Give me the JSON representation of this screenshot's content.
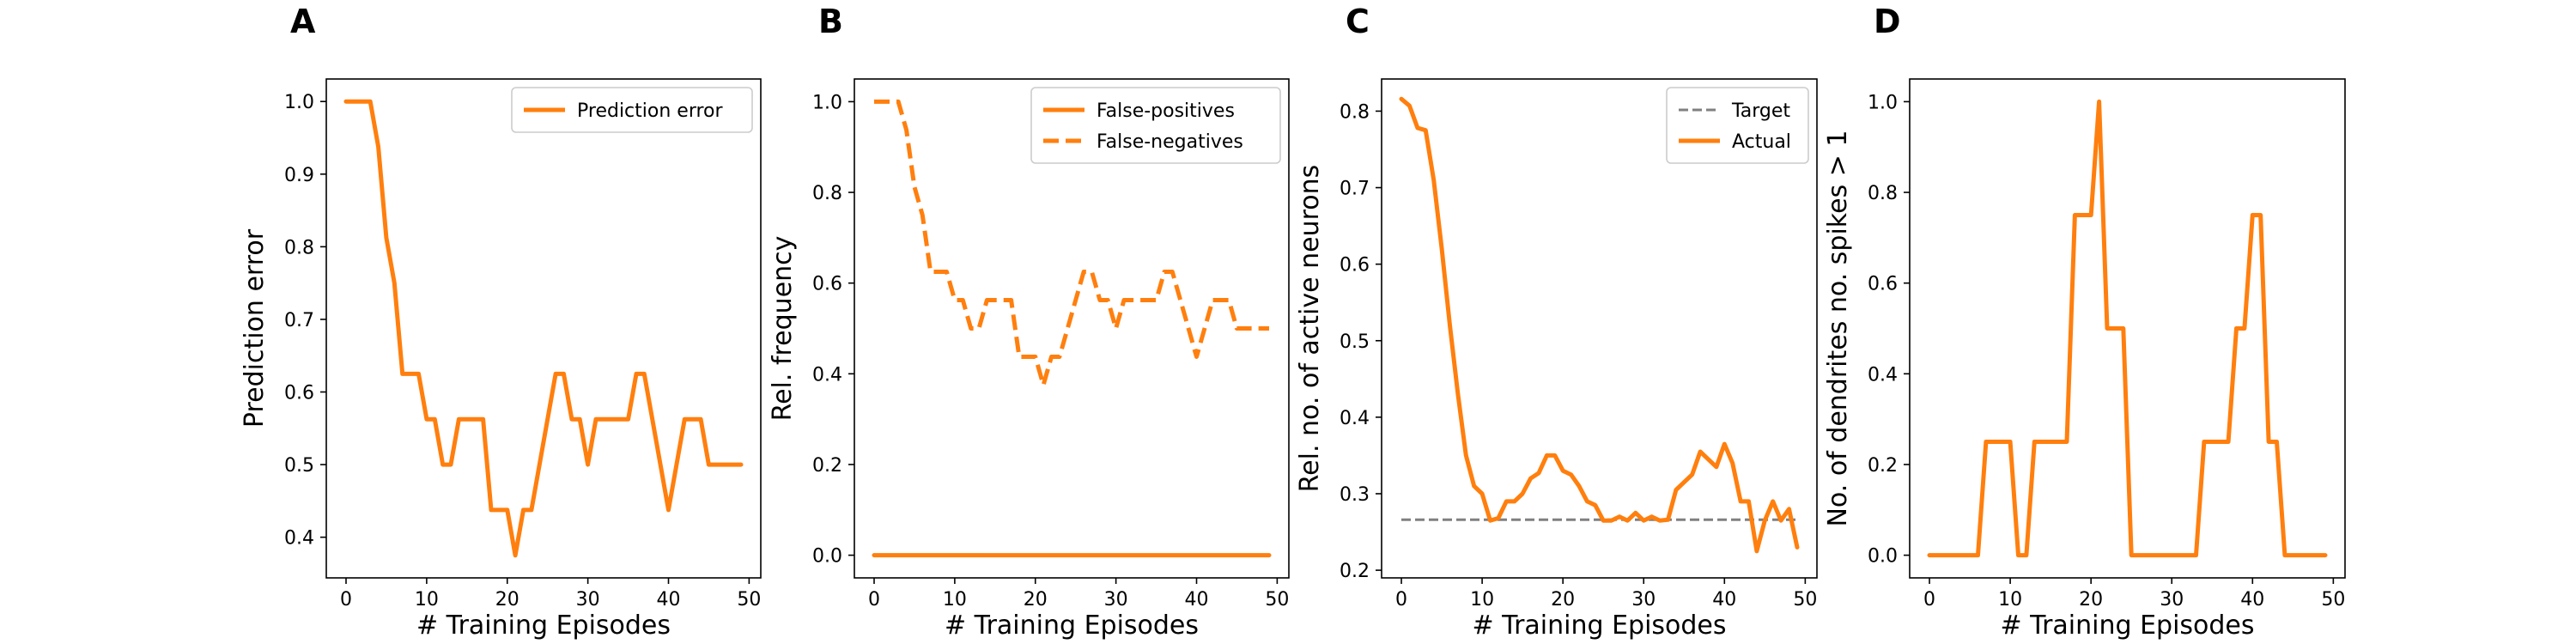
{
  "colors": {
    "orange": "#ff7f0e",
    "gray": "#808080",
    "axis": "#000000",
    "legend_border": "#cccccc"
  },
  "chart_data": [
    {
      "type": "line",
      "panel": "A",
      "xlabel": "# Training Episodes",
      "ylabel": "Prediction error",
      "xlim": [
        -2.45,
        51.45
      ],
      "ylim": [
        0.344,
        1.031
      ],
      "xticks": [
        0,
        10,
        20,
        30,
        40,
        50
      ],
      "yticks": [
        0.4,
        0.5,
        0.6,
        0.7,
        0.8,
        0.9,
        1.0
      ],
      "ytick_labels": [
        "0.4",
        "0.5",
        "0.6",
        "0.7",
        "0.8",
        "0.9",
        "1.0"
      ],
      "grid": false,
      "legend_position": "top-right",
      "series": [
        {
          "name": "Prediction error",
          "style": "solid",
          "color": "#ff7f0e",
          "x": [
            0,
            1,
            2,
            3,
            4,
            5,
            6,
            7,
            8,
            9,
            10,
            11,
            12,
            13,
            14,
            15,
            16,
            17,
            18,
            19,
            20,
            21,
            22,
            23,
            24,
            25,
            26,
            27,
            28,
            29,
            30,
            31,
            32,
            33,
            34,
            35,
            36,
            37,
            38,
            39,
            40,
            41,
            42,
            43,
            44,
            45,
            46,
            47,
            48,
            49
          ],
          "values": [
            1.0,
            1.0,
            1.0,
            1.0,
            0.9375,
            0.8125,
            0.75,
            0.625,
            0.625,
            0.625,
            0.5625,
            0.5625,
            0.5,
            0.5,
            0.5625,
            0.5625,
            0.5625,
            0.5625,
            0.4375,
            0.4375,
            0.4375,
            0.375,
            0.4375,
            0.4375,
            0.5,
            0.5625,
            0.625,
            0.625,
            0.5625,
            0.5625,
            0.5,
            0.5625,
            0.5625,
            0.5625,
            0.5625,
            0.5625,
            0.625,
            0.625,
            0.5625,
            0.5,
            0.4375,
            0.5,
            0.5625,
            0.5625,
            0.5625,
            0.5,
            0.5,
            0.5,
            0.5,
            0.5
          ]
        }
      ]
    },
    {
      "type": "line",
      "panel": "B",
      "xlabel": "# Training Episodes",
      "ylabel": "Rel. frequency",
      "xlim": [
        -2.45,
        51.45
      ],
      "ylim": [
        -0.05,
        1.05
      ],
      "xticks": [
        0,
        10,
        20,
        30,
        40,
        50
      ],
      "yticks": [
        0.0,
        0.2,
        0.4,
        0.6,
        0.8,
        1.0
      ],
      "ytick_labels": [
        "0.0",
        "0.2",
        "0.4",
        "0.6",
        "0.8",
        "1.0"
      ],
      "grid": false,
      "legend_position": "top-right",
      "series": [
        {
          "name": "False-positives",
          "style": "solid",
          "color": "#ff7f0e",
          "x": [
            0,
            1,
            2,
            3,
            4,
            5,
            6,
            7,
            8,
            9,
            10,
            11,
            12,
            13,
            14,
            15,
            16,
            17,
            18,
            19,
            20,
            21,
            22,
            23,
            24,
            25,
            26,
            27,
            28,
            29,
            30,
            31,
            32,
            33,
            34,
            35,
            36,
            37,
            38,
            39,
            40,
            41,
            42,
            43,
            44,
            45,
            46,
            47,
            48,
            49
          ],
          "values": [
            0,
            0,
            0,
            0,
            0,
            0,
            0,
            0,
            0,
            0,
            0,
            0,
            0,
            0,
            0,
            0,
            0,
            0,
            0,
            0,
            0,
            0,
            0,
            0,
            0,
            0,
            0,
            0,
            0,
            0,
            0,
            0,
            0,
            0,
            0,
            0,
            0,
            0,
            0,
            0,
            0,
            0,
            0,
            0,
            0,
            0,
            0,
            0,
            0,
            0
          ]
        },
        {
          "name": "False-negatives",
          "style": "dashed",
          "color": "#ff7f0e",
          "x": [
            0,
            1,
            2,
            3,
            4,
            5,
            6,
            7,
            8,
            9,
            10,
            11,
            12,
            13,
            14,
            15,
            16,
            17,
            18,
            19,
            20,
            21,
            22,
            23,
            24,
            25,
            26,
            27,
            28,
            29,
            30,
            31,
            32,
            33,
            34,
            35,
            36,
            37,
            38,
            39,
            40,
            41,
            42,
            43,
            44,
            45,
            46,
            47,
            48,
            49
          ],
          "values": [
            1.0,
            1.0,
            1.0,
            1.0,
            0.9375,
            0.8125,
            0.75,
            0.625,
            0.625,
            0.625,
            0.5625,
            0.5625,
            0.5,
            0.5,
            0.5625,
            0.5625,
            0.5625,
            0.5625,
            0.4375,
            0.4375,
            0.4375,
            0.375,
            0.4375,
            0.4375,
            0.5,
            0.5625,
            0.625,
            0.625,
            0.5625,
            0.5625,
            0.5,
            0.5625,
            0.5625,
            0.5625,
            0.5625,
            0.5625,
            0.625,
            0.625,
            0.5625,
            0.5,
            0.4375,
            0.5,
            0.5625,
            0.5625,
            0.5625,
            0.5,
            0.5,
            0.5,
            0.5,
            0.5
          ]
        }
      ]
    },
    {
      "type": "line",
      "panel": "C",
      "xlabel": "# Training Episodes",
      "ylabel": "Rel. no. of active neurons",
      "xlim": [
        -2.45,
        51.45
      ],
      "ylim": [
        0.19,
        0.842
      ],
      "xticks": [
        0,
        10,
        20,
        30,
        40,
        50
      ],
      "yticks": [
        0.2,
        0.3,
        0.4,
        0.5,
        0.6,
        0.7,
        0.8
      ],
      "ytick_labels": [
        "0.2",
        "0.3",
        "0.4",
        "0.5",
        "0.6",
        "0.7",
        "0.8"
      ],
      "grid": false,
      "legend_position": "top-right",
      "series": [
        {
          "name": "Target",
          "style": "dashed",
          "color": "#808080",
          "x": [
            0,
            49
          ],
          "values": [
            0.266,
            0.266
          ]
        },
        {
          "name": "Actual",
          "style": "solid",
          "color": "#ff7f0e",
          "x": [
            0,
            1,
            2,
            3,
            4,
            5,
            6,
            7,
            8,
            9,
            10,
            11,
            12,
            13,
            14,
            15,
            16,
            17,
            18,
            19,
            20,
            21,
            22,
            23,
            24,
            25,
            26,
            27,
            28,
            29,
            30,
            31,
            32,
            33,
            34,
            35,
            36,
            37,
            38,
            39,
            40,
            41,
            42,
            43,
            44,
            45,
            46,
            47,
            48,
            49
          ],
          "values": [
            0.816,
            0.807,
            0.778,
            0.775,
            0.71,
            0.62,
            0.52,
            0.43,
            0.35,
            0.31,
            0.3,
            0.265,
            0.268,
            0.29,
            0.29,
            0.3,
            0.32,
            0.327,
            0.35,
            0.35,
            0.33,
            0.325,
            0.31,
            0.29,
            0.285,
            0.265,
            0.265,
            0.27,
            0.265,
            0.275,
            0.265,
            0.27,
            0.265,
            0.266,
            0.305,
            0.315,
            0.325,
            0.355,
            0.345,
            0.335,
            0.365,
            0.34,
            0.29,
            0.29,
            0.225,
            0.265,
            0.29,
            0.265,
            0.28,
            0.23
          ]
        }
      ]
    },
    {
      "type": "line",
      "panel": "D",
      "xlabel": "# Training Episodes",
      "ylabel": "No. of dendrites no. spikes > 1",
      "xlim": [
        -2.45,
        51.45
      ],
      "ylim": [
        -0.05,
        1.05
      ],
      "xticks": [
        0,
        10,
        20,
        30,
        40,
        50
      ],
      "yticks": [
        0.0,
        0.2,
        0.4,
        0.6,
        0.8,
        1.0
      ],
      "ytick_labels": [
        "0.0",
        "0.2",
        "0.4",
        "0.6",
        "0.8",
        "1.0"
      ],
      "grid": false,
      "series": [
        {
          "style": "solid",
          "color": "#ff7f0e",
          "x": [
            0,
            1,
            2,
            3,
            4,
            5,
            6,
            7,
            8,
            9,
            10,
            11,
            12,
            13,
            14,
            15,
            16,
            17,
            18,
            19,
            20,
            21,
            22,
            23,
            24,
            25,
            26,
            27,
            28,
            29,
            30,
            31,
            32,
            33,
            34,
            35,
            36,
            37,
            38,
            39,
            40,
            41,
            42,
            43,
            44,
            45,
            46,
            47,
            48,
            49
          ],
          "values": [
            0,
            0,
            0,
            0,
            0,
            0,
            0,
            0.25,
            0.25,
            0.25,
            0.25,
            0,
            0,
            0.25,
            0.25,
            0.25,
            0.25,
            0.25,
            0.75,
            0.75,
            0.75,
            1.0,
            0.5,
            0.5,
            0.5,
            0,
            0,
            0,
            0,
            0,
            0,
            0,
            0,
            0,
            0.25,
            0.25,
            0.25,
            0.25,
            0.5,
            0.5,
            0.75,
            0.75,
            0.25,
            0.25,
            0,
            0,
            0,
            0,
            0,
            0
          ]
        }
      ]
    }
  ]
}
